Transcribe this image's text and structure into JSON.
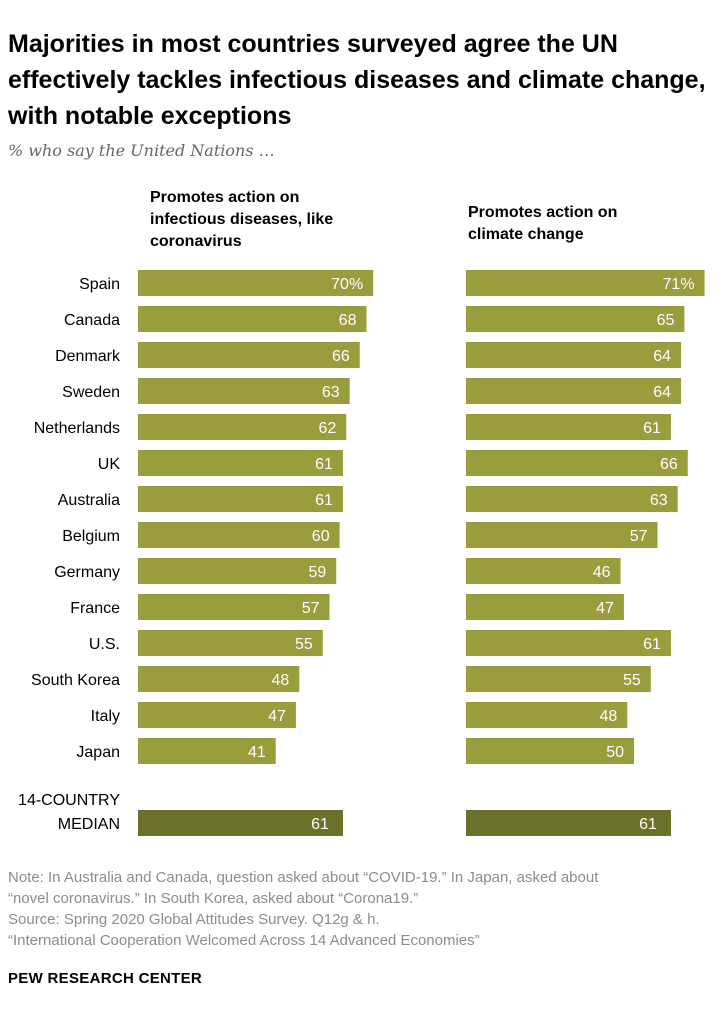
{
  "title": "Majorities in most countries surveyed agree the UN effectively tackles infectious diseases and climate change, with notable exceptions",
  "subtitle": "% who say the United Nations …",
  "colors": {
    "bar": "#999d3b",
    "median_bar": "#6b712b",
    "bar_label": "#ffffff"
  },
  "chart_data": {
    "type": "bar",
    "orientation": "horizontal",
    "categories": [
      "Spain",
      "Canada",
      "Denmark",
      "Sweden",
      "Netherlands",
      "UK",
      "Australia",
      "Belgium",
      "Germany",
      "France",
      "U.S.",
      "South Korea",
      "Italy",
      "Japan"
    ],
    "series": [
      {
        "name": "Promotes action on infectious diseases, like coronavirus",
        "values": [
          70,
          68,
          66,
          63,
          62,
          61,
          61,
          60,
          59,
          57,
          55,
          48,
          47,
          41
        ],
        "median": 61
      },
      {
        "name": "Promotes action on climate change",
        "values": [
          71,
          65,
          64,
          64,
          61,
          66,
          63,
          57,
          46,
          47,
          61,
          55,
          48,
          50
        ],
        "median": 61
      }
    ],
    "median_label_line1": "14-COUNTRY",
    "median_label_line2": "MEDIAN",
    "first_value_suffix": "%",
    "xlim": [
      0,
      100
    ],
    "grid": false,
    "legend": "column headers"
  },
  "notes": {
    "line1": "Note: In Australia and Canada, question asked about “COVID-19.” In Japan, asked about",
    "line2": "“novel coronavirus.” In South Korea, asked about “Corona19.”",
    "line3": "Source: Spring 2020 Global Attitudes Survey. Q12g & h.",
    "line4": "“International Cooperation Welcomed Across 14 Advanced Economies”"
  },
  "brand": "PEW RESEARCH CENTER"
}
